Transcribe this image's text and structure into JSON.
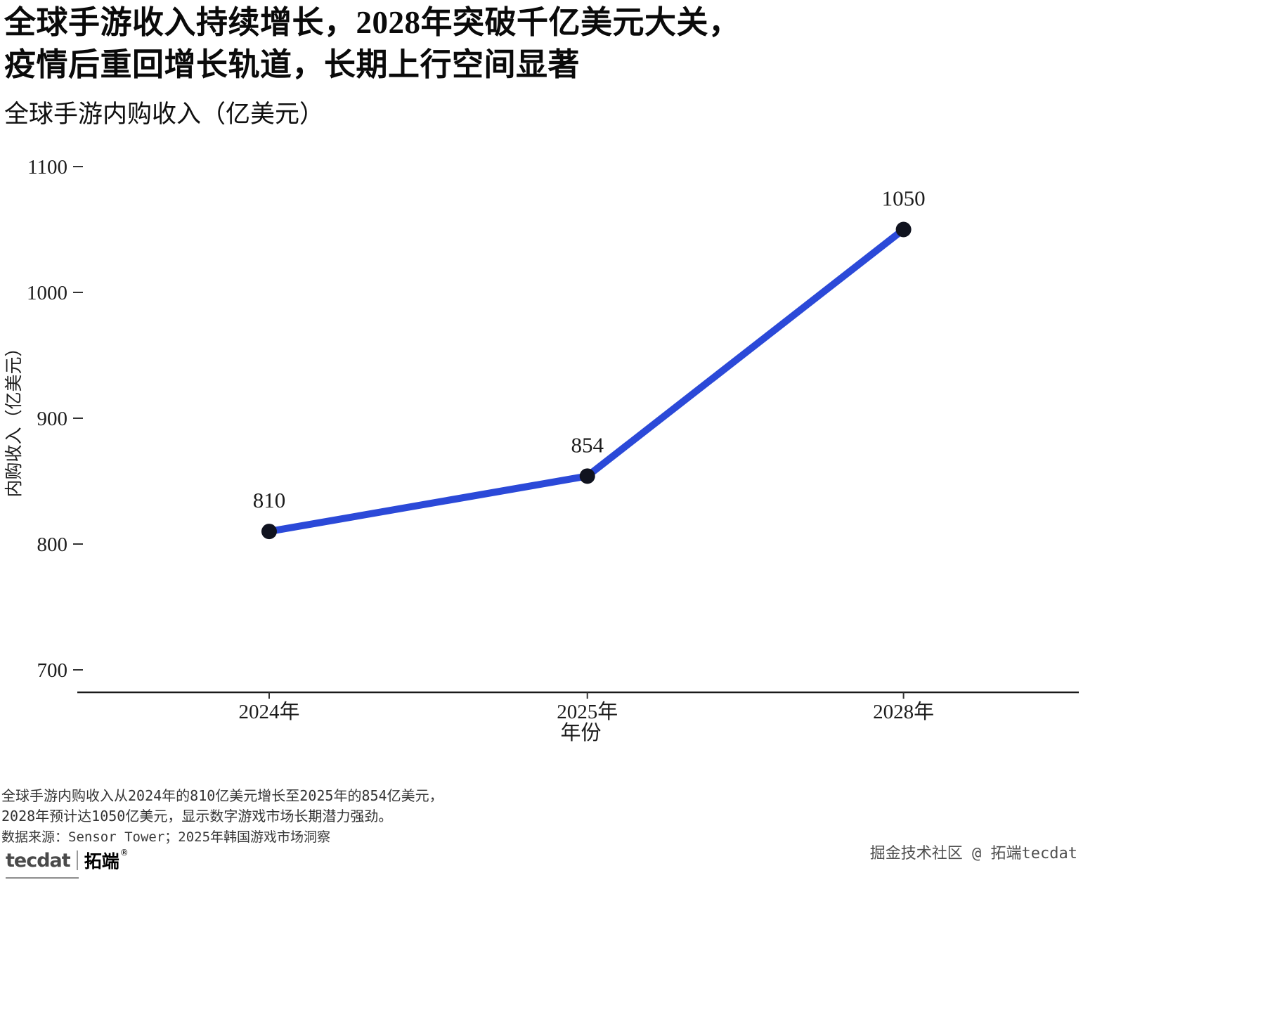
{
  "header": {
    "title_line1": "全球手游收入持续增长，2028年突破千亿美元大关，",
    "title_line2": "疫情后重回增长轨道，长期上行空间显著",
    "subtitle": "全球手游内购收入（亿美元）"
  },
  "chart_data": {
    "type": "line",
    "title": "全球手游内购收入（亿美元）",
    "categories": [
      "2024年",
      "2025年",
      "2028年"
    ],
    "values": [
      810,
      854,
      1050
    ],
    "data_labels": [
      "810",
      "854",
      "1050"
    ],
    "xlabel": "年份",
    "ylabel": "内购收入（亿美元）",
    "ylim": [
      700,
      1100
    ],
    "yticks": [
      700,
      800,
      900,
      1000,
      1100
    ],
    "grid": false,
    "legend": "none",
    "line_color": "#2b49d8",
    "point_color": "#10131f"
  },
  "footnote": {
    "line1": "全球手游内购收入从2024年的810亿美元增长至2025年的854亿美元，",
    "line2": "2028年预计达1050亿美元，显示数字游戏市场长期潜力强劲。",
    "source": "数据来源：Sensor Tower；2025年韩国游戏市场洞察"
  },
  "branding": {
    "logo_primary": "tecdat",
    "logo_secondary": "拓端",
    "logo_reg": "®",
    "watermark": "掘金技术社区 @ 拓端tecdat"
  }
}
